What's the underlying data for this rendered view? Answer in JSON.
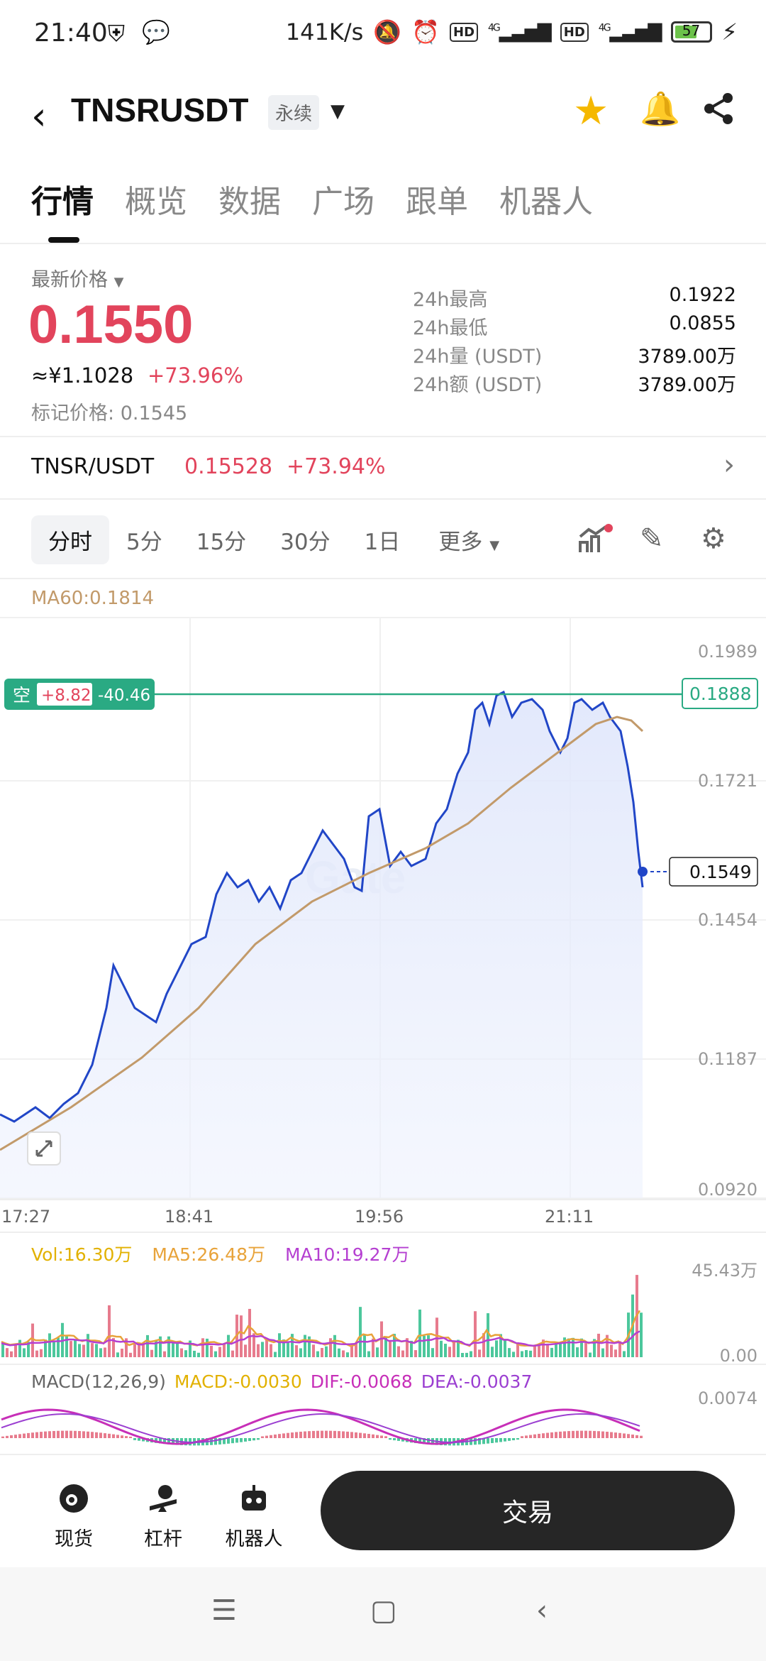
{
  "status_bar": {
    "time": "21:40",
    "net_speed": "141K/s",
    "hd1": "HD",
    "net1": "4G",
    "hd2": "HD",
    "net2": "4G",
    "battery": "57"
  },
  "header": {
    "symbol": "TNSRUSDT",
    "contract_type": "永续"
  },
  "tabs": [
    {
      "label": "行情"
    },
    {
      "label": "概览"
    },
    {
      "label": "数据"
    },
    {
      "label": "广场"
    },
    {
      "label": "跟单"
    },
    {
      "label": "机器人"
    }
  ],
  "price": {
    "latest_label": "最新价格",
    "last_price": "0.1550",
    "approx_cny": "≈¥1.1028",
    "change_pct": "+73.96%",
    "mark_price_label": "标记价格:",
    "mark_price": "0.1545"
  },
  "stats": [
    {
      "label": "24h最高",
      "value": "0.1922"
    },
    {
      "label": "24h最低",
      "value": "0.0855"
    },
    {
      "label": "24h量 (USDT)",
      "value": "3789.00万"
    },
    {
      "label": "24h额 (USDT)",
      "value": "3789.00万"
    }
  ],
  "spot_pair": {
    "name": "TNSR/USDT",
    "price": "0.15528",
    "change_pct": "+73.94%"
  },
  "intervals": [
    {
      "label": "分时"
    },
    {
      "label": "5分"
    },
    {
      "label": "15分"
    },
    {
      "label": "30分"
    },
    {
      "label": "1日"
    },
    {
      "label": "更多"
    }
  ],
  "chart": {
    "ma60_label": "MA60:0.1814",
    "position_tag": {
      "side": "空",
      "pnl": "+8.82",
      "pnl2": "-40.46"
    },
    "position_price": "0.1888",
    "current_price_tag": "0.1549",
    "y_ticks": [
      "0.1989",
      "0.1721",
      "0.1454",
      "0.1187",
      "0.0920"
    ],
    "x_ticks": [
      "17:27",
      "18:41",
      "19:56",
      "21:11"
    ],
    "watermark": "Gate"
  },
  "volume": {
    "vol_label": "Vol:16.30万",
    "ma5_label": "MA5:26.48万",
    "ma10_label": "MA10:19.27万",
    "max_tick": "45.43万",
    "min_tick": "0.00"
  },
  "macd": {
    "title": "MACD(12,26,9)",
    "macd_label": "MACD:-0.0030",
    "dif_label": "DIF:-0.0068",
    "dea_label": "DEA:-0.0037",
    "top_tick": "0.0074"
  },
  "bottom_bar": {
    "spot": "现货",
    "margin": "杠杆",
    "bot": "机器人",
    "trade": "交易"
  },
  "colors": {
    "up_red": "#e2445c",
    "down_green": "#2bb888",
    "price_line": "#2146c7",
    "ma60_line": "#c29a6a",
    "position_line": "#2aaa83"
  }
}
